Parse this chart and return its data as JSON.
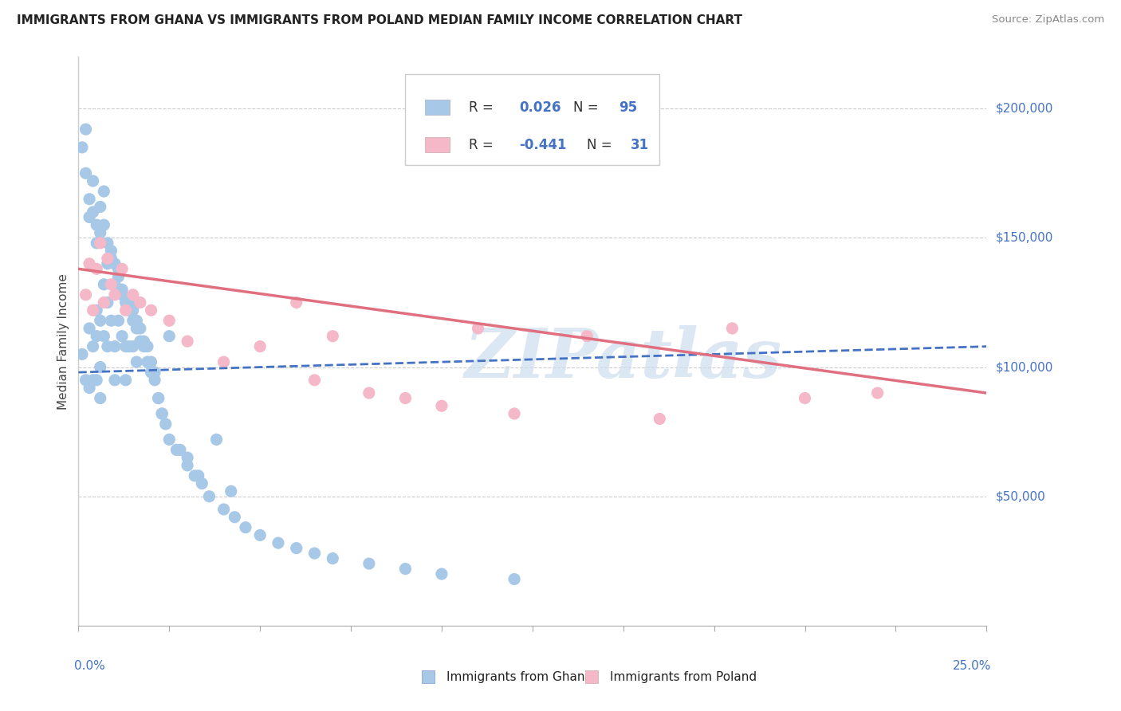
{
  "title": "IMMIGRANTS FROM GHANA VS IMMIGRANTS FROM POLAND MEDIAN FAMILY INCOME CORRELATION CHART",
  "source": "Source: ZipAtlas.com",
  "ylabel": "Median Family Income",
  "xlim": [
    0.0,
    0.25
  ],
  "ylim": [
    0,
    220000
  ],
  "ghana_color": "#a8c8e8",
  "ghana_line_color": "#4472c4",
  "poland_color": "#f4b8c8",
  "poland_line_color": "#e07080",
  "ghana_R": "0.026",
  "ghana_N": "95",
  "poland_R": "-0.441",
  "poland_N": "31",
  "watermark": "ZIPatlas",
  "ghana_scatter_x": [
    0.001,
    0.002,
    0.003,
    0.003,
    0.004,
    0.004,
    0.005,
    0.005,
    0.005,
    0.006,
    0.006,
    0.006,
    0.007,
    0.007,
    0.008,
    0.008,
    0.009,
    0.009,
    0.01,
    0.01,
    0.011,
    0.011,
    0.012,
    0.012,
    0.013,
    0.013,
    0.014,
    0.014,
    0.015,
    0.015,
    0.016,
    0.016,
    0.017,
    0.018,
    0.019,
    0.02,
    0.021,
    0.022,
    0.023,
    0.025,
    0.027,
    0.03,
    0.033,
    0.038,
    0.042,
    0.001,
    0.002,
    0.002,
    0.003,
    0.003,
    0.004,
    0.004,
    0.005,
    0.005,
    0.006,
    0.006,
    0.007,
    0.007,
    0.008,
    0.008,
    0.009,
    0.01,
    0.01,
    0.011,
    0.012,
    0.013,
    0.014,
    0.015,
    0.016,
    0.017,
    0.018,
    0.019,
    0.02,
    0.021,
    0.022,
    0.023,
    0.024,
    0.025,
    0.028,
    0.03,
    0.032,
    0.034,
    0.036,
    0.04,
    0.043,
    0.046,
    0.05,
    0.055,
    0.06,
    0.065,
    0.07,
    0.08,
    0.09,
    0.1,
    0.12
  ],
  "ghana_scatter_y": [
    105000,
    95000,
    115000,
    92000,
    108000,
    95000,
    122000,
    112000,
    95000,
    118000,
    100000,
    88000,
    132000,
    112000,
    125000,
    108000,
    142000,
    118000,
    108000,
    95000,
    135000,
    118000,
    128000,
    112000,
    108000,
    95000,
    125000,
    108000,
    122000,
    108000,
    118000,
    102000,
    115000,
    110000,
    108000,
    102000,
    98000,
    88000,
    82000,
    112000,
    68000,
    65000,
    58000,
    72000,
    52000,
    185000,
    192000,
    175000,
    165000,
    158000,
    172000,
    160000,
    155000,
    148000,
    162000,
    152000,
    168000,
    155000,
    148000,
    140000,
    145000,
    140000,
    132000,
    138000,
    130000,
    125000,
    122000,
    118000,
    115000,
    110000,
    108000,
    102000,
    98000,
    95000,
    88000,
    82000,
    78000,
    72000,
    68000,
    62000,
    58000,
    55000,
    50000,
    45000,
    42000,
    38000,
    35000,
    32000,
    30000,
    28000,
    26000,
    24000,
    22000,
    20000,
    18000
  ],
  "poland_scatter_x": [
    0.002,
    0.003,
    0.004,
    0.005,
    0.006,
    0.007,
    0.008,
    0.009,
    0.01,
    0.012,
    0.013,
    0.015,
    0.017,
    0.02,
    0.025,
    0.03,
    0.04,
    0.05,
    0.06,
    0.065,
    0.07,
    0.08,
    0.09,
    0.1,
    0.11,
    0.12,
    0.14,
    0.16,
    0.18,
    0.2,
    0.22
  ],
  "poland_scatter_y": [
    128000,
    140000,
    122000,
    138000,
    148000,
    125000,
    142000,
    132000,
    128000,
    138000,
    122000,
    128000,
    125000,
    122000,
    118000,
    110000,
    102000,
    108000,
    125000,
    95000,
    112000,
    90000,
    88000,
    85000,
    115000,
    82000,
    112000,
    80000,
    115000,
    88000,
    90000
  ],
  "ghana_line_y": [
    98000,
    108000
  ],
  "poland_line_y": [
    138000,
    90000
  ]
}
